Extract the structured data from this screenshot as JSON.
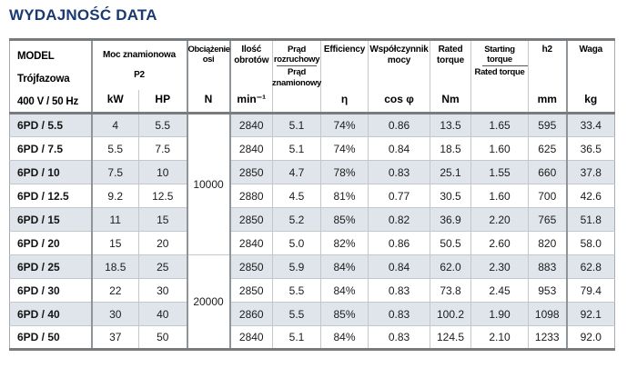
{
  "title": "WYDAJNOŚĆ DATA",
  "colors": {
    "title_navy": "#1a3a73",
    "row_shade": "#dfe5ea",
    "heavy_rule": "#797c7f",
    "thick_divider": "#8f9499",
    "thin_divider": "#c3c8cd"
  },
  "table": {
    "header": {
      "model_lines": [
        "MODEL",
        "Trójfazowa",
        "400 V / 50 Hz"
      ],
      "power": {
        "line1": "Moc znamionowa",
        "line2": "P2"
      },
      "axis_load": "Obciążenie osi",
      "speed": "Ilość obrotów",
      "current": {
        "top": "Prąd rozruchowy",
        "bottom": "Prąd znamionowy"
      },
      "efficiency": "Efficiency",
      "power_factor": "Współczynnik mocy",
      "rated_torque": "Rated torque",
      "torque_ratio": {
        "top": "Starting torque",
        "bottom": "Rated torque"
      },
      "h2": "h2",
      "weight": "Waga",
      "units": {
        "kw": "kW",
        "hp": "HP",
        "n": "N",
        "rpm": "min⁻¹",
        "eta": "η",
        "cos": "cos φ",
        "nm": "Nm",
        "mm": "mm",
        "kg": "kg"
      }
    },
    "axis_load_groups": [
      {
        "value": "10000",
        "span": 6
      },
      {
        "value": "20000",
        "span": 4
      }
    ],
    "rows": [
      {
        "model": "6PD / 5.5",
        "kw": "4",
        "hp": "5.5",
        "rpm": "2840",
        "current_ratio": "5.1",
        "efficiency": "74%",
        "cos_phi": "0.86",
        "rated_torque": "13.5",
        "torque_ratio": "1.65",
        "h2": "595",
        "weight": "33.4"
      },
      {
        "model": "6PD / 7.5",
        "kw": "5.5",
        "hp": "7.5",
        "rpm": "2840",
        "current_ratio": "5.1",
        "efficiency": "74%",
        "cos_phi": "0.84",
        "rated_torque": "18.5",
        "torque_ratio": "1.60",
        "h2": "625",
        "weight": "36.5"
      },
      {
        "model": "6PD / 10",
        "kw": "7.5",
        "hp": "10",
        "rpm": "2850",
        "current_ratio": "4.7",
        "efficiency": "78%",
        "cos_phi": "0.83",
        "rated_torque": "25.1",
        "torque_ratio": "1.55",
        "h2": "660",
        "weight": "37.8"
      },
      {
        "model": "6PD / 12.5",
        "kw": "9.2",
        "hp": "12.5",
        "rpm": "2880",
        "current_ratio": "4.5",
        "efficiency": "81%",
        "cos_phi": "0.77",
        "rated_torque": "30.5",
        "torque_ratio": "1.60",
        "h2": "700",
        "weight": "42.6"
      },
      {
        "model": "6PD / 15",
        "kw": "11",
        "hp": "15",
        "rpm": "2850",
        "current_ratio": "5.2",
        "efficiency": "85%",
        "cos_phi": "0.82",
        "rated_torque": "36.9",
        "torque_ratio": "2.20",
        "h2": "765",
        "weight": "51.8"
      },
      {
        "model": "6PD / 20",
        "kw": "15",
        "hp": "20",
        "rpm": "2840",
        "current_ratio": "5.0",
        "efficiency": "82%",
        "cos_phi": "0.86",
        "rated_torque": "50.5",
        "torque_ratio": "2.60",
        "h2": "820",
        "weight": "58.0"
      },
      {
        "model": "6PD / 25",
        "kw": "18.5",
        "hp": "25",
        "rpm": "2850",
        "current_ratio": "5.9",
        "efficiency": "84%",
        "cos_phi": "0.84",
        "rated_torque": "62.0",
        "torque_ratio": "2.30",
        "h2": "883",
        "weight": "62.8"
      },
      {
        "model": "6PD / 30",
        "kw": "22",
        "hp": "30",
        "rpm": "2850",
        "current_ratio": "5.5",
        "efficiency": "84%",
        "cos_phi": "0.83",
        "rated_torque": "73.8",
        "torque_ratio": "2.45",
        "h2": "953",
        "weight": "79.4"
      },
      {
        "model": "6PD / 40",
        "kw": "30",
        "hp": "40",
        "rpm": "2860",
        "current_ratio": "5.5",
        "efficiency": "85%",
        "cos_phi": "0.83",
        "rated_torque": "100.2",
        "torque_ratio": "1.90",
        "h2": "1098",
        "weight": "92.1"
      },
      {
        "model": "6PD / 50",
        "kw": "37",
        "hp": "50",
        "rpm": "2840",
        "current_ratio": "5.1",
        "efficiency": "84%",
        "cos_phi": "0.83",
        "rated_torque": "124.5",
        "torque_ratio": "2.10",
        "h2": "1233",
        "weight": "92.0"
      }
    ]
  }
}
